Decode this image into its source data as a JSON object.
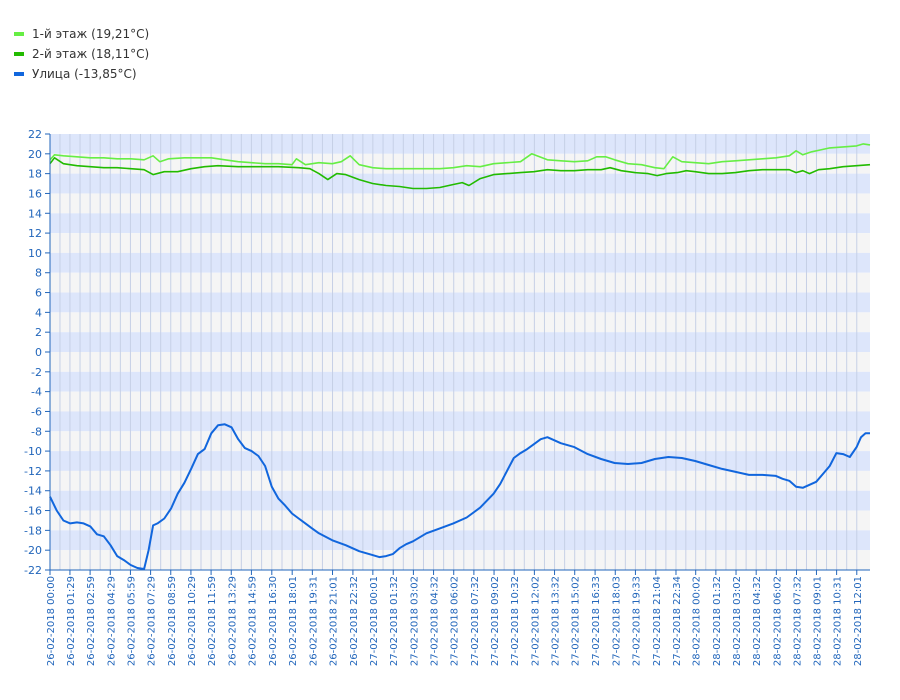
{
  "chart_data": {
    "type": "line",
    "title": "",
    "xlabel": "",
    "ylabel": "",
    "ylim": [
      -22,
      22
    ],
    "yticks": [
      22,
      20,
      18,
      16,
      14,
      12,
      10,
      8,
      6,
      4,
      2,
      0,
      -2,
      -4,
      -6,
      -8,
      -10,
      -12,
      -14,
      -16,
      -18,
      -20,
      -22
    ],
    "grid": true,
    "legend_position": "top-left",
    "x_range": [
      "26-02-2018 00:00",
      "28-02-2018 13:00"
    ],
    "x_tick_labels": [
      "26-02-2018 00:00",
      "26-02-2018 01:29",
      "26-02-2018 02:59",
      "26-02-2018 04:29",
      "26-02-2018 05:59",
      "26-02-2018 07:29",
      "26-02-2018 08:59",
      "26-02-2018 10:29",
      "26-02-2018 11:59",
      "26-02-2018 13:29",
      "26-02-2018 14:59",
      "26-02-2018 16:30",
      "26-02-2018 18:01",
      "26-02-2018 19:31",
      "26-02-2018 21:01",
      "26-02-2018 22:32",
      "27-02-2018 00:01",
      "27-02-2018 01:32",
      "27-02-2018 03:02",
      "27-02-2018 04:32",
      "27-02-2018 06:02",
      "27-02-2018 07:32",
      "27-02-2018 09:02",
      "27-02-2018 10:32",
      "27-02-2018 12:02",
      "27-02-2018 13:32",
      "27-02-2018 15:02",
      "27-02-2018 16:33",
      "27-02-2018 18:03",
      "27-02-2018 19:33",
      "27-02-2018 21:04",
      "27-02-2018 22:34",
      "28-02-2018 00:02",
      "28-02-2018 01:32",
      "28-02-2018 03:02",
      "28-02-2018 04:32",
      "28-02-2018 06:02",
      "28-02-2018 07:32",
      "28-02-2018 09:01",
      "28-02-2018 10:31",
      "28-02-2018 12:01"
    ],
    "series": [
      {
        "name": "1-й этаж (19,21°C)",
        "color": "#66ee44",
        "x": [
          "26-02-2018 00:00",
          "26-02-2018 00:20",
          "26-02-2018 01:00",
          "26-02-2018 02:00",
          "26-02-2018 03:00",
          "26-02-2018 04:00",
          "26-02-2018 05:00",
          "26-02-2018 06:00",
          "26-02-2018 07:00",
          "26-02-2018 07:40",
          "26-02-2018 08:10",
          "26-02-2018 08:50",
          "26-02-2018 10:00",
          "26-02-2018 11:00",
          "26-02-2018 12:00",
          "26-02-2018 13:00",
          "26-02-2018 14:00",
          "26-02-2018 15:00",
          "26-02-2018 16:00",
          "26-02-2018 17:00",
          "26-02-2018 18:00",
          "26-02-2018 18:20",
          "26-02-2018 19:00",
          "26-02-2018 20:00",
          "26-02-2018 21:00",
          "26-02-2018 21:40",
          "26-02-2018 22:20",
          "26-02-2018 23:00",
          "27-02-2018 00:00",
          "27-02-2018 01:00",
          "27-02-2018 02:00",
          "27-02-2018 03:00",
          "27-02-2018 04:00",
          "27-02-2018 05:00",
          "27-02-2018 06:00",
          "27-02-2018 07:00",
          "27-02-2018 08:00",
          "27-02-2018 09:00",
          "27-02-2018 10:00",
          "27-02-2018 11:00",
          "27-02-2018 11:50",
          "27-02-2018 13:00",
          "27-02-2018 14:00",
          "27-02-2018 15:00",
          "27-02-2018 16:00",
          "27-02-2018 16:40",
          "27-02-2018 17:20",
          "27-02-2018 18:00",
          "27-02-2018 19:00",
          "27-02-2018 20:00",
          "27-02-2018 21:00",
          "27-02-2018 21:40",
          "27-02-2018 22:20",
          "27-02-2018 23:00",
          "28-02-2018 00:00",
          "28-02-2018 01:00",
          "28-02-2018 02:00",
          "28-02-2018 03:00",
          "28-02-2018 04:00",
          "28-02-2018 05:00",
          "28-02-2018 06:00",
          "28-02-2018 07:00",
          "28-02-2018 07:30",
          "28-02-2018 08:00",
          "28-02-2018 08:40",
          "28-02-2018 09:20",
          "28-02-2018 10:00",
          "28-02-2018 11:00",
          "28-02-2018 12:00",
          "28-02-2018 12:30",
          "28-02-2018 13:00"
        ],
        "values": [
          19.4,
          19.9,
          19.8,
          19.7,
          19.6,
          19.6,
          19.5,
          19.5,
          19.4,
          19.8,
          19.2,
          19.5,
          19.6,
          19.6,
          19.6,
          19.4,
          19.2,
          19.1,
          19.0,
          19.0,
          18.9,
          19.5,
          18.9,
          19.1,
          19.0,
          19.2,
          19.8,
          18.9,
          18.6,
          18.5,
          18.5,
          18.5,
          18.5,
          18.5,
          18.6,
          18.8,
          18.7,
          19.0,
          19.1,
          19.2,
          20.0,
          19.4,
          19.3,
          19.2,
          19.3,
          19.7,
          19.7,
          19.4,
          19.0,
          18.9,
          18.6,
          18.5,
          19.7,
          19.2,
          19.1,
          19.0,
          19.2,
          19.3,
          19.4,
          19.5,
          19.6,
          19.8,
          20.3,
          19.9,
          20.2,
          20.4,
          20.6,
          20.7,
          20.8,
          21.0,
          20.9
        ]
      },
      {
        "name": "2-й этаж (18,11°C)",
        "color": "#22bb00",
        "x": [
          "26-02-2018 00:00",
          "26-02-2018 00:20",
          "26-02-2018 01:00",
          "26-02-2018 02:00",
          "26-02-2018 03:00",
          "26-02-2018 04:00",
          "26-02-2018 05:00",
          "26-02-2018 06:00",
          "26-02-2018 07:00",
          "26-02-2018 07:40",
          "26-02-2018 08:30",
          "26-02-2018 09:30",
          "26-02-2018 10:30",
          "26-02-2018 11:30",
          "26-02-2018 12:30",
          "26-02-2018 14:00",
          "26-02-2018 15:30",
          "26-02-2018 17:00",
          "26-02-2018 18:30",
          "26-02-2018 19:20",
          "26-02-2018 20:00",
          "26-02-2018 20:40",
          "26-02-2018 21:20",
          "26-02-2018 22:00",
          "26-02-2018 23:00",
          "27-02-2018 00:00",
          "27-02-2018 01:00",
          "27-02-2018 02:00",
          "27-02-2018 03:00",
          "27-02-2018 04:00",
          "27-02-2018 05:00",
          "27-02-2018 06:00",
          "27-02-2018 06:40",
          "27-02-2018 07:10",
          "27-02-2018 08:00",
          "27-02-2018 09:00",
          "27-02-2018 10:00",
          "27-02-2018 11:00",
          "27-02-2018 12:00",
          "27-02-2018 13:00",
          "27-02-2018 14:00",
          "27-02-2018 15:00",
          "27-02-2018 16:00",
          "27-02-2018 17:00",
          "27-02-2018 17:40",
          "27-02-2018 18:30",
          "27-02-2018 19:30",
          "27-02-2018 20:30",
          "27-02-2018 21:10",
          "27-02-2018 21:50",
          "27-02-2018 22:40",
          "27-02-2018 23:20",
          "28-02-2018 00:00",
          "28-02-2018 01:00",
          "28-02-2018 02:00",
          "28-02-2018 03:00",
          "28-02-2018 04:00",
          "28-02-2018 05:00",
          "28-02-2018 06:00",
          "28-02-2018 07:00",
          "28-02-2018 07:30",
          "28-02-2018 08:00",
          "28-02-2018 08:30",
          "28-02-2018 09:10",
          "28-02-2018 10:00",
          "28-02-2018 11:00",
          "28-02-2018 12:00",
          "28-02-2018 13:00"
        ],
        "values": [
          19.0,
          19.6,
          19.0,
          18.8,
          18.7,
          18.6,
          18.6,
          18.5,
          18.4,
          17.9,
          18.2,
          18.2,
          18.5,
          18.7,
          18.8,
          18.7,
          18.7,
          18.7,
          18.6,
          18.5,
          18.0,
          17.4,
          18.0,
          17.9,
          17.4,
          17.0,
          16.8,
          16.7,
          16.5,
          16.5,
          16.6,
          16.9,
          17.1,
          16.8,
          17.5,
          17.9,
          18.0,
          18.1,
          18.2,
          18.4,
          18.3,
          18.3,
          18.4,
          18.4,
          18.6,
          18.3,
          18.1,
          18.0,
          17.8,
          18.0,
          18.1,
          18.3,
          18.2,
          18.0,
          18.0,
          18.1,
          18.3,
          18.4,
          18.4,
          18.4,
          18.1,
          18.3,
          18.0,
          18.4,
          18.5,
          18.7,
          18.8,
          18.9
        ]
      },
      {
        "name": "Улица (-13,85°C)",
        "color": "#1166dd",
        "x": [
          "26-02-2018 00:00",
          "26-02-2018 00:30",
          "26-02-2018 01:00",
          "26-02-2018 01:30",
          "26-02-2018 02:00",
          "26-02-2018 02:30",
          "26-02-2018 03:00",
          "26-02-2018 03:30",
          "26-02-2018 04:00",
          "26-02-2018 04:30",
          "26-02-2018 05:00",
          "26-02-2018 05:30",
          "26-02-2018 06:00",
          "26-02-2018 06:30",
          "26-02-2018 07:00",
          "26-02-2018 07:20",
          "26-02-2018 07:40",
          "26-02-2018 08:00",
          "26-02-2018 08:30",
          "26-02-2018 09:00",
          "26-02-2018 09:30",
          "26-02-2018 10:00",
          "26-02-2018 10:30",
          "26-02-2018 11:00",
          "26-02-2018 11:30",
          "26-02-2018 12:00",
          "26-02-2018 12:30",
          "26-02-2018 13:00",
          "26-02-2018 13:30",
          "26-02-2018 14:00",
          "26-02-2018 14:30",
          "26-02-2018 15:00",
          "26-02-2018 15:30",
          "26-02-2018 16:00",
          "26-02-2018 16:30",
          "26-02-2018 17:00",
          "26-02-2018 17:30",
          "26-02-2018 18:00",
          "26-02-2018 18:30",
          "26-02-2018 19:00",
          "26-02-2018 19:30",
          "26-02-2018 20:00",
          "26-02-2018 21:00",
          "26-02-2018 22:00",
          "26-02-2018 23:00",
          "27-02-2018 00:00",
          "27-02-2018 00:30",
          "27-02-2018 01:00",
          "27-02-2018 01:30",
          "27-02-2018 02:00",
          "27-02-2018 02:30",
          "27-02-2018 03:00",
          "27-02-2018 04:00",
          "27-02-2018 05:00",
          "27-02-2018 06:00",
          "27-02-2018 07:00",
          "27-02-2018 08:00",
          "27-02-2018 09:00",
          "27-02-2018 09:30",
          "27-02-2018 10:00",
          "27-02-2018 10:30",
          "27-02-2018 11:00",
          "27-02-2018 11:30",
          "27-02-2018 12:00",
          "27-02-2018 12:30",
          "27-02-2018 13:00",
          "27-02-2018 13:30",
          "27-02-2018 14:00",
          "27-02-2018 15:00",
          "27-02-2018 16:00",
          "27-02-2018 17:00",
          "27-02-2018 18:00",
          "27-02-2018 19:00",
          "27-02-2018 20:00",
          "27-02-2018 21:00",
          "27-02-2018 22:00",
          "27-02-2018 23:00",
          "28-02-2018 00:00",
          "28-02-2018 01:00",
          "28-02-2018 02:00",
          "28-02-2018 03:00",
          "28-02-2018 04:00",
          "28-02-2018 05:00",
          "28-02-2018 06:00",
          "28-02-2018 06:30",
          "28-02-2018 07:00",
          "28-02-2018 07:30",
          "28-02-2018 08:00",
          "28-02-2018 08:30",
          "28-02-2018 09:00",
          "28-02-2018 09:30",
          "28-02-2018 10:00",
          "28-02-2018 10:30",
          "28-02-2018 11:00",
          "28-02-2018 11:30",
          "28-02-2018 12:00",
          "28-02-2018 12:20",
          "28-02-2018 12:40",
          "28-02-2018 13:00"
        ],
        "values": [
          -14.6,
          -16.0,
          -17.0,
          -17.3,
          -17.2,
          -17.3,
          -17.6,
          -18.4,
          -18.6,
          -19.5,
          -20.6,
          -21.0,
          -21.5,
          -21.8,
          -21.9,
          -20.0,
          -17.5,
          -17.3,
          -16.8,
          -15.8,
          -14.3,
          -13.2,
          -11.8,
          -10.3,
          -9.8,
          -8.2,
          -7.4,
          -7.3,
          -7.6,
          -8.8,
          -9.7,
          -10.0,
          -10.5,
          -11.5,
          -13.6,
          -14.8,
          -15.5,
          -16.3,
          -16.8,
          -17.3,
          -17.8,
          -18.3,
          -19.0,
          -19.5,
          -20.1,
          -20.5,
          -20.7,
          -20.6,
          -20.4,
          -19.8,
          -19.4,
          -19.1,
          -18.3,
          -17.8,
          -17.3,
          -16.7,
          -15.7,
          -14.3,
          -13.3,
          -12.0,
          -10.7,
          -10.2,
          -9.8,
          -9.3,
          -8.8,
          -8.6,
          -8.9,
          -9.2,
          -9.6,
          -10.3,
          -10.8,
          -11.2,
          -11.3,
          -11.2,
          -10.8,
          -10.6,
          -10.7,
          -11.0,
          -11.4,
          -11.8,
          -12.1,
          -12.4,
          -12.4,
          -12.5,
          -12.8,
          -13.0,
          -13.6,
          -13.7,
          -13.4,
          -13.1,
          -12.3,
          -11.5,
          -10.2,
          -10.3,
          -10.6,
          -9.6,
          -8.6,
          -8.2,
          -8.2
        ]
      }
    ]
  }
}
